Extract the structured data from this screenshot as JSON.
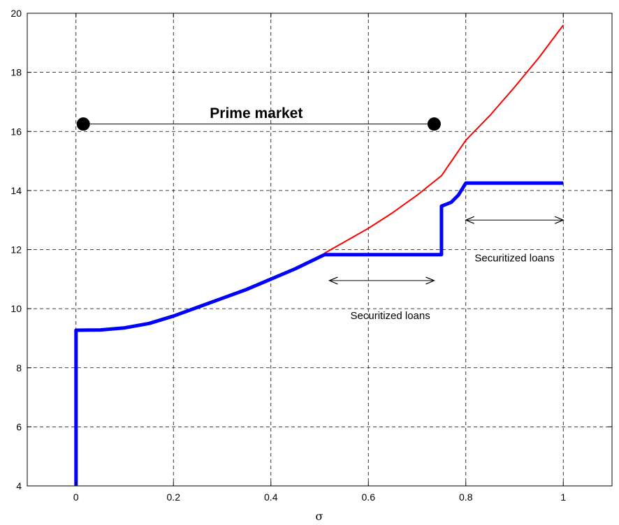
{
  "chart_data": {
    "type": "line",
    "title": "",
    "xlabel": "σ",
    "ylabel": "",
    "xlim": [
      -0.1,
      1.1
    ],
    "ylim": [
      4,
      20
    ],
    "grid": true,
    "x_ticks": [
      0,
      0.2,
      0.4,
      0.6,
      0.8,
      1
    ],
    "x_tick_labels": [
      "0",
      "0.2",
      "0.4",
      "0.6",
      "0.8",
      "1"
    ],
    "y_ticks": [
      4,
      6,
      8,
      10,
      12,
      14,
      16,
      18,
      20
    ],
    "y_tick_labels": [
      "4",
      "6",
      "8",
      "10",
      "12",
      "14",
      "16",
      "18",
      "20"
    ],
    "series": [
      {
        "color": "#ff0000",
        "style": "thin",
        "points": [
          [
            0.51,
            11.88
          ],
          [
            0.55,
            12.25
          ],
          [
            0.6,
            12.72
          ],
          [
            0.65,
            13.25
          ],
          [
            0.7,
            13.84
          ],
          [
            0.75,
            14.5
          ],
          [
            0.8,
            15.7
          ],
          [
            0.85,
            16.55
          ],
          [
            0.9,
            17.5
          ],
          [
            0.95,
            18.5
          ],
          [
            1.0,
            19.6
          ]
        ]
      },
      {
        "color": "#0000ff",
        "style": "thick",
        "points": [
          [
            0,
            4.0
          ],
          [
            0,
            9.27
          ],
          [
            0.05,
            9.28
          ],
          [
            0.1,
            9.35
          ],
          [
            0.15,
            9.5
          ],
          [
            0.2,
            9.75
          ],
          [
            0.25,
            10.05
          ],
          [
            0.3,
            10.35
          ],
          [
            0.35,
            10.65
          ],
          [
            0.4,
            11.0
          ],
          [
            0.45,
            11.35
          ],
          [
            0.51,
            11.83
          ],
          [
            0.75,
            11.83
          ],
          [
            0.75,
            13.47
          ],
          [
            0.77,
            13.6
          ],
          [
            0.785,
            13.85
          ],
          [
            0.8,
            14.25
          ],
          [
            1.0,
            14.25
          ]
        ]
      }
    ],
    "annotations": [
      {
        "text": "Prime market",
        "x": 0.37,
        "y": 16.45
      },
      {
        "text": "Securitized loans",
        "x": 0.645,
        "y": 9.65
      },
      {
        "text": "Securitized loans",
        "x": 0.9,
        "y": 11.6
      }
    ],
    "markers": [
      {
        "x": 0.015,
        "y": 16.25
      },
      {
        "x": 0.735,
        "y": 16.25
      }
    ],
    "ranges": [
      {
        "x1": 0.015,
        "x2": 0.735,
        "y": 16.25
      },
      {
        "x1": 0.52,
        "x2": 0.735,
        "y": 10.95
      },
      {
        "x1": 0.8,
        "x2": 1.0,
        "y": 13.0
      }
    ]
  }
}
